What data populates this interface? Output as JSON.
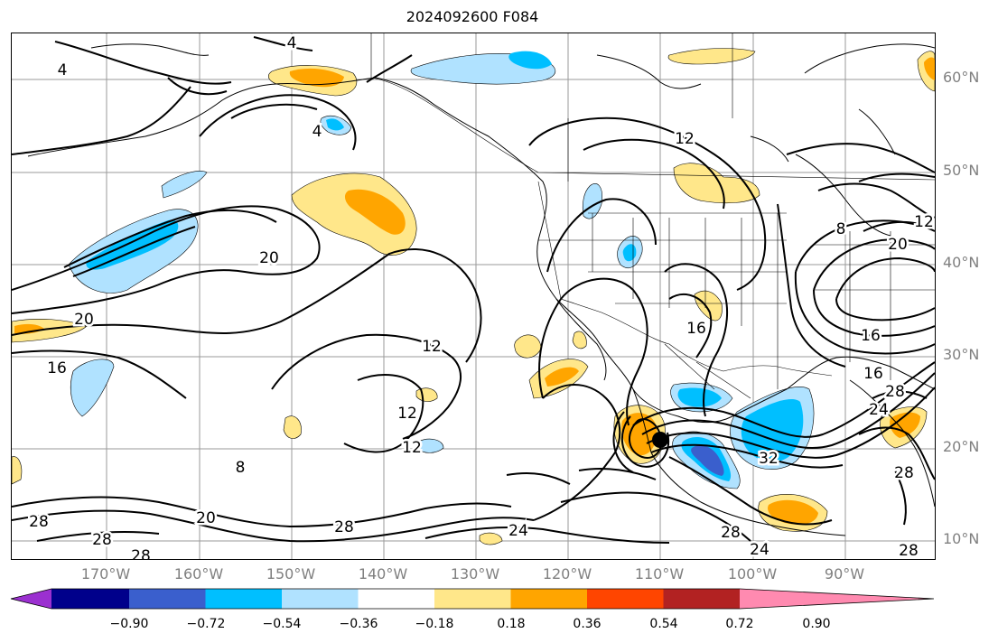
{
  "title": "2024092600 F084",
  "lat_labels": [
    "60°N",
    "50°N",
    "40°N",
    "30°N",
    "20°N",
    "10°N"
  ],
  "lon_labels": [
    "170°W",
    "160°W",
    "150°W",
    "140°W",
    "130°W",
    "120°W",
    "110°W",
    "100°W",
    "90°W"
  ],
  "contour_labels": [
    "4",
    "4",
    "4",
    "12",
    "20",
    "20",
    "16",
    "12",
    "12",
    "12",
    "8",
    "28",
    "28",
    "28",
    "20",
    "28",
    "24",
    "28",
    "24",
    "32",
    "24",
    "28",
    "16",
    "16",
    "8",
    "20",
    "12",
    "28",
    "28"
  ],
  "colorbar": {
    "tick_labels": [
      "−0.90",
      "−0.72",
      "−0.54",
      "−0.36",
      "−0.18",
      "0.18",
      "0.36",
      "0.54",
      "0.72",
      "0.90"
    ],
    "colors": [
      "#9b30d0",
      "#00008b",
      "#3a5fcd",
      "#00bfff",
      "#b0e2ff",
      "#ffffff",
      "#ffe78a",
      "#ffa500",
      "#ff4500",
      "#b22222",
      "#ff8ab0"
    ]
  },
  "storm_marker": {
    "lon": -110.0,
    "lat": 21.0
  }
}
